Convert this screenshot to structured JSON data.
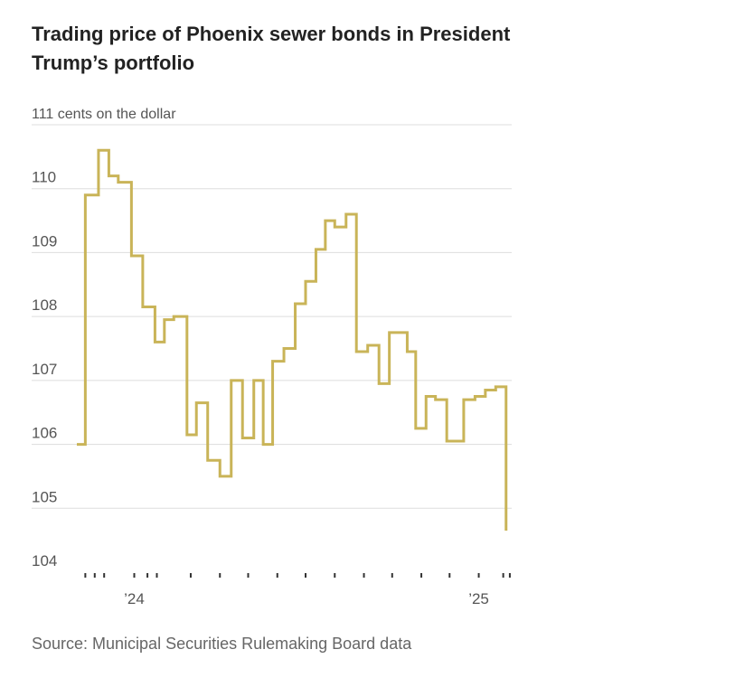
{
  "title": "Trading price of Phoenix sewer bonds in President Trump’s portfolio",
  "source": "Source: Municipal Securities Rulemaking Board data",
  "colors": {
    "line": "#c9b458",
    "grid": "#dddddd",
    "axis": "#333333",
    "text": "#555555"
  },
  "chart_data": {
    "type": "line",
    "step": true,
    "title": "Trading price of Phoenix sewer bonds in President Trump’s portfolio",
    "ylabel": "cents on the dollar",
    "ylim": [
      104,
      111
    ],
    "yticks": [
      104,
      105,
      106,
      107,
      108,
      109,
      110,
      111
    ],
    "ytick_labels": [
      "104",
      "105",
      "106",
      "107",
      "108",
      "109",
      "110",
      "111 cents on the dollar"
    ],
    "xlim": [
      "2023-11-01",
      "2025-02-05"
    ],
    "xtick_labels": [
      {
        "date": "2024-01-01",
        "label": "’24"
      },
      {
        "date": "2025-01-01",
        "label": "’25"
      }
    ],
    "x": [
      "2023-11-01",
      "2023-11-10",
      "2023-11-24",
      "2023-12-05",
      "2023-12-15",
      "2023-12-29",
      "2024-01-10",
      "2024-01-23",
      "2024-02-02",
      "2024-02-12",
      "2024-02-26",
      "2024-03-07",
      "2024-03-19",
      "2024-04-01",
      "2024-04-13",
      "2024-04-25",
      "2024-05-07",
      "2024-05-17",
      "2024-05-27",
      "2024-06-08",
      "2024-06-20",
      "2024-07-01",
      "2024-07-12",
      "2024-07-22",
      "2024-08-01",
      "2024-08-13",
      "2024-08-24",
      "2024-09-05",
      "2024-09-17",
      "2024-09-28",
      "2024-10-17",
      "2024-10-26",
      "2024-11-06",
      "2024-11-16",
      "2024-11-28",
      "2024-12-16",
      "2024-12-28",
      "2025-01-08",
      "2025-01-19",
      "2025-01-30"
    ],
    "series": [
      {
        "values": [
          106.0,
          109.9,
          110.6,
          110.2,
          110.1,
          108.95,
          108.15,
          107.6,
          107.95,
          108.0,
          106.15,
          106.65,
          105.75,
          105.5,
          107.0,
          106.1,
          107.0,
          106.0,
          107.3,
          107.5,
          108.2,
          108.55,
          109.05,
          109.5,
          109.4,
          109.6,
          107.45,
          107.55,
          106.95,
          107.75,
          107.45,
          106.25,
          106.75,
          106.7,
          106.05,
          106.7,
          106.75,
          106.85,
          106.9,
          104.65
        ]
      }
    ]
  }
}
